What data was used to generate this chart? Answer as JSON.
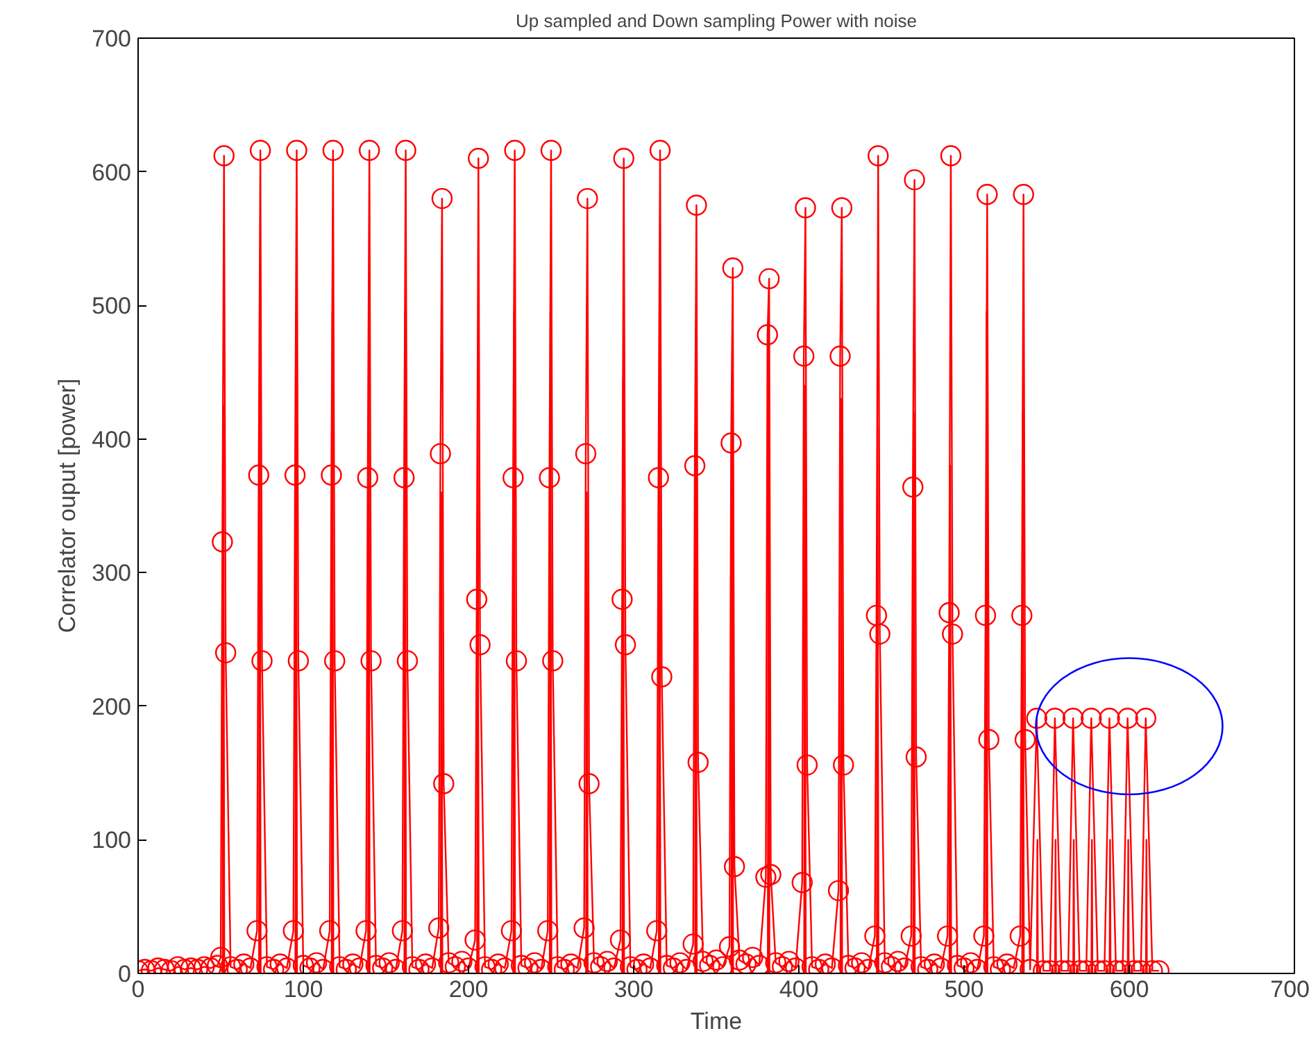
{
  "chart_data": {
    "type": "line",
    "title": "Up sampled and Down sampling Power with noise",
    "xlabel": "Time",
    "ylabel": "Correlator ouput [power]",
    "xlim": [
      0,
      700
    ],
    "xticks": [
      0,
      100,
      200,
      300,
      400,
      500,
      600,
      700
    ],
    "ylim": [
      0,
      700
    ],
    "yticks": [
      0,
      100,
      200,
      300,
      400,
      500,
      600,
      700
    ],
    "grid": false,
    "line_style": "solid",
    "series": [
      {
        "color": "#ff0000",
        "marker": "none",
        "x": [
          51.2,
          51.6,
          52.2,
          73.2,
          73.6,
          74.2,
          95.2,
          95.6,
          96.2,
          117.2,
          117.6,
          118.2,
          139.2,
          139.6,
          140.2,
          161.2,
          161.6,
          162.2,
          183.2,
          183.6,
          184.2,
          205.2,
          205.6,
          206.2,
          227.2,
          227.6,
          228.2,
          249.2,
          249.6,
          250.2,
          271.2,
          271.6,
          272.2,
          293.2,
          293.6,
          294.2,
          315.2,
          315.6,
          316.2,
          337.2,
          337.6,
          338.2,
          359.2,
          359.6,
          360.2,
          381.2,
          381.6,
          382.2,
          403.2,
          403.6,
          404.2,
          425.2,
          425.6,
          426.2,
          447.2,
          447.6,
          448.2,
          469.2,
          469.6,
          470.2,
          491.2,
          491.6,
          492.2,
          513.2,
          513.6,
          514.2,
          535.2,
          535.6,
          536.2,
          544.1,
          544.4,
          544.7,
          555.1,
          555.4,
          555.7,
          566.1,
          566.4,
          566.7,
          577.1,
          577.4,
          577.7,
          588.1,
          588.4,
          588.7,
          599.1,
          599.4,
          599.7,
          610.1,
          610.4,
          610.7
        ],
        "values": [
          0,
          425,
          0,
          0,
          495,
          0,
          0,
          495,
          0,
          0,
          495,
          0,
          0,
          495,
          0,
          0,
          495,
          0,
          0,
          360,
          0,
          0,
          446,
          0,
          0,
          495,
          0,
          0,
          495,
          0,
          0,
          360,
          0,
          0,
          446,
          0,
          0,
          495,
          0,
          0,
          480,
          0,
          0,
          425,
          0,
          0,
          495,
          0,
          0,
          440,
          0,
          0,
          430,
          0,
          0,
          410,
          0,
          0,
          420,
          0,
          0,
          380,
          0,
          0,
          495,
          0,
          0,
          420,
          0,
          0,
          100,
          0,
          0,
          100,
          0,
          0,
          100,
          0,
          0,
          100,
          0,
          0,
          100,
          0,
          0,
          100,
          0,
          0,
          100,
          0
        ]
      },
      {
        "color": "#ff0000",
        "marker": "circle",
        "x": [
          0,
          4,
          8,
          12,
          16,
          20,
          24,
          28,
          32,
          36,
          40,
          44,
          48,
          50,
          51,
          52,
          53,
          56,
          60,
          64,
          68,
          72,
          73,
          74,
          75,
          78,
          82,
          86,
          90,
          94,
          95,
          96,
          97,
          100,
          104,
          108,
          112,
          116,
          117,
          118,
          119,
          122,
          126,
          130,
          134,
          138,
          139,
          140,
          141,
          144,
          148,
          152,
          156,
          160,
          161,
          162,
          163,
          166,
          170,
          174,
          178,
          182,
          183,
          184,
          185,
          188,
          192,
          196,
          200,
          204,
          205,
          206,
          207,
          210,
          214,
          218,
          222,
          226,
          227,
          228,
          229,
          232,
          236,
          240,
          244,
          248,
          249,
          250,
          251,
          254,
          258,
          262,
          266,
          270,
          271,
          272,
          273,
          276,
          280,
          284,
          288,
          292,
          293,
          294,
          295,
          298,
          302,
          306,
          310,
          314,
          315,
          316,
          317,
          320,
          324,
          328,
          332,
          336,
          337,
          338,
          339,
          342,
          346,
          350,
          354,
          358,
          359,
          360,
          361,
          364,
          368,
          372,
          376,
          380,
          381,
          382,
          383,
          386,
          390,
          394,
          398,
          402,
          403,
          404,
          405,
          408,
          412,
          416,
          420,
          424,
          425,
          426,
          427,
          430,
          434,
          438,
          442,
          446,
          447,
          448,
          449,
          452,
          456,
          460,
          464,
          468,
          469,
          470,
          471,
          474,
          478,
          482,
          486,
          490,
          491,
          492,
          493,
          496,
          500,
          504,
          508,
          512,
          513,
          514,
          515,
          518,
          522,
          526,
          530,
          534,
          535,
          536,
          537,
          540,
          544,
          548,
          552,
          555,
          559,
          563,
          566,
          570,
          574,
          577,
          581,
          585,
          588,
          592,
          596,
          599,
          603,
          607,
          610,
          614,
          618
        ],
        "values": [
          2,
          3,
          2,
          4,
          3,
          2,
          5,
          3,
          4,
          3,
          5,
          4,
          6,
          12,
          323,
          612,
          240,
          5,
          3,
          7,
          4,
          32,
          373,
          616,
          234,
          5,
          3,
          7,
          4,
          32,
          373,
          616,
          234,
          6,
          4,
          8,
          3,
          32,
          373,
          616,
          234,
          5,
          3,
          7,
          4,
          32,
          371,
          616,
          234,
          6,
          4,
          8,
          3,
          32,
          371,
          616,
          234,
          5,
          3,
          7,
          4,
          34,
          389,
          580,
          142,
          8,
          5,
          9,
          4,
          25,
          280,
          610,
          246,
          5,
          3,
          7,
          4,
          32,
          371,
          616,
          234,
          6,
          4,
          8,
          3,
          32,
          371,
          616,
          234,
          5,
          3,
          7,
          4,
          34,
          389,
          580,
          142,
          8,
          5,
          9,
          4,
          25,
          280,
          610,
          246,
          5,
          3,
          7,
          4,
          32,
          371,
          616,
          222,
          6,
          4,
          8,
          3,
          22,
          380,
          575,
          158,
          9,
          6,
          10,
          5,
          20,
          397,
          528,
          80,
          10,
          7,
          12,
          6,
          72,
          478,
          520,
          74,
          8,
          5,
          9,
          4,
          68,
          462,
          573,
          156,
          5,
          3,
          7,
          4,
          62,
          462,
          573,
          156,
          6,
          4,
          8,
          3,
          28,
          268,
          612,
          254,
          8,
          5,
          9,
          4,
          28,
          364,
          594,
          162,
          5,
          3,
          7,
          4,
          28,
          270,
          612,
          254,
          6,
          4,
          8,
          3,
          28,
          268,
          583,
          175,
          5,
          3,
          7,
          4,
          28,
          268,
          583,
          175,
          3,
          191,
          2,
          2,
          191,
          2,
          2,
          191,
          2,
          2,
          191,
          2,
          2,
          191,
          2,
          2,
          191,
          2,
          2,
          191,
          2,
          2
        ]
      }
    ]
  }
}
